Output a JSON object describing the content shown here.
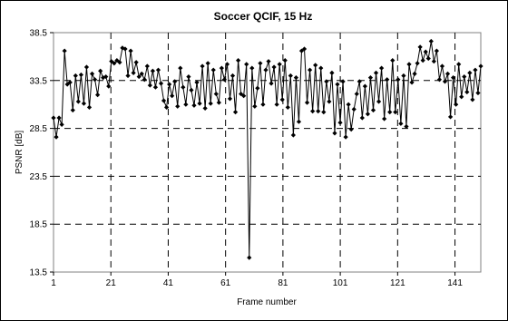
{
  "chart_data": {
    "type": "line",
    "title": "Soccer QCIF, 15 Hz",
    "xlabel": "Frame number",
    "ylabel": "PSNR [dB]",
    "xlim": [
      1,
      150
    ],
    "ylim": [
      13.5,
      38.5
    ],
    "xticks": [
      1,
      21,
      41,
      61,
      81,
      101,
      121,
      141
    ],
    "yticks": [
      13.5,
      18.5,
      23.5,
      28.5,
      33.5,
      38.5
    ],
    "grid": true,
    "marker": "diamond",
    "series": [
      {
        "values": [
          29.6,
          27.6,
          29.6,
          28.9,
          36.6,
          33.1,
          33.3,
          30.4,
          34.0,
          31.3,
          34.1,
          31.1,
          34.9,
          30.7,
          34.2,
          33.6,
          32.0,
          34.5,
          33.8,
          33.9,
          32.9,
          35.5,
          35.3,
          35.6,
          35.4,
          36.9,
          36.8,
          34.0,
          36.6,
          34.3,
          35.4,
          33.9,
          34.2,
          33.6,
          35.0,
          33.0,
          34.5,
          32.8,
          34.6,
          33.2,
          31.4,
          30.7,
          33.1,
          31.9,
          33.4,
          30.8,
          34.8,
          32.8,
          31.0,
          33.9,
          32.5,
          30.9,
          33.3,
          31.1,
          35.0,
          30.6,
          35.3,
          31.1,
          34.6,
          32.1,
          31.2,
          34.8,
          33.6,
          35.2,
          31.6,
          34.0,
          30.2,
          35.6,
          32.1,
          31.9,
          35.2,
          15.0,
          34.8,
          30.8,
          32.7,
          35.3,
          31.0,
          34.6,
          35.5,
          33.2,
          34.9,
          31.0,
          35.2,
          31.5,
          35.6,
          30.7,
          34.0,
          27.8,
          33.8,
          29.2,
          36.6,
          36.8,
          31.2,
          34.6,
          30.3,
          35.1,
          30.3,
          34.8,
          30.2,
          33.4,
          31.3,
          34.3,
          28.0,
          33.1,
          29.1,
          33.4,
          27.6,
          31.0,
          28.4,
          30.5,
          32.1,
          33.4,
          29.6,
          32.9,
          30.0,
          33.8,
          30.4,
          34.3,
          31.3,
          34.8,
          29.5,
          33.6,
          30.2,
          35.6,
          30.2,
          33.6,
          29.0,
          34.0,
          28.7,
          35.2,
          33.3,
          34.2,
          35.3,
          37.0,
          35.6,
          36.5,
          35.8,
          37.6,
          35.5,
          36.6,
          33.6,
          35.0,
          33.4,
          34.2,
          29.7,
          33.8,
          31.0,
          35.2,
          31.8,
          33.9,
          32.3,
          34.3,
          31.5,
          34.6,
          32.2,
          35.0
        ]
      }
    ]
  }
}
